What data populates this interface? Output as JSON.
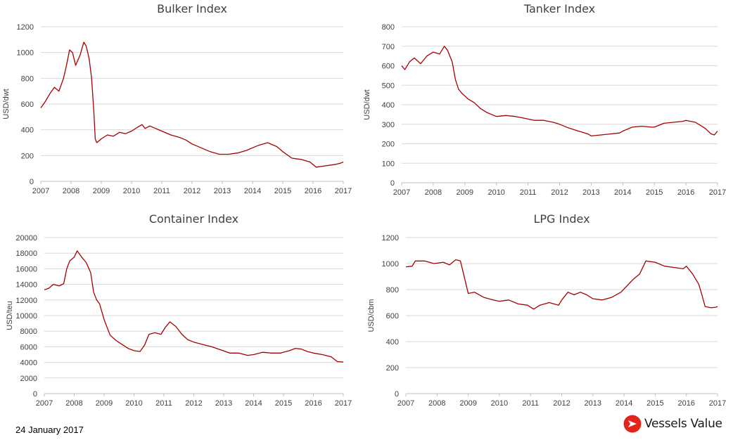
{
  "chart_data": [
    {
      "type": "line",
      "title": "Bulker Index",
      "xlabel": "",
      "ylabel": "USD/dwt",
      "xlim": [
        2007,
        2017
      ],
      "ylim": [
        0,
        1200
      ],
      "yticks": [
        0,
        200,
        400,
        600,
        800,
        1000,
        1200
      ],
      "xticks": [
        2007,
        2008,
        2009,
        2010,
        2011,
        2012,
        2013,
        2014,
        2015,
        2016,
        2017
      ],
      "color": "#a50000",
      "x": [
        2007.0,
        2007.15,
        2007.3,
        2007.45,
        2007.6,
        2007.75,
        2007.85,
        2007.95,
        2008.05,
        2008.15,
        2008.3,
        2008.42,
        2008.5,
        2008.6,
        2008.68,
        2008.75,
        2008.8,
        2008.85,
        2008.9,
        2009.0,
        2009.2,
        2009.4,
        2009.6,
        2009.8,
        2010.0,
        2010.2,
        2010.35,
        2010.45,
        2010.6,
        2010.8,
        2011.0,
        2011.3,
        2011.6,
        2011.8,
        2012.0,
        2012.3,
        2012.6,
        2012.9,
        2013.2,
        2013.5,
        2013.8,
        2014.0,
        2014.2,
        2014.5,
        2014.8,
        2015.0,
        2015.3,
        2015.6,
        2015.9,
        2016.1,
        2016.4,
        2016.7,
        2016.9,
        2017.0
      ],
      "y": [
        570,
        620,
        680,
        730,
        700,
        800,
        900,
        1020,
        1000,
        900,
        980,
        1080,
        1050,
        950,
        800,
        550,
        330,
        300,
        310,
        330,
        360,
        350,
        380,
        370,
        390,
        420,
        440,
        410,
        430,
        410,
        390,
        360,
        340,
        320,
        290,
        260,
        230,
        210,
        210,
        220,
        240,
        260,
        280,
        300,
        270,
        230,
        180,
        170,
        150,
        110,
        120,
        130,
        140,
        150
      ]
    },
    {
      "type": "line",
      "title": "Tanker Index",
      "xlabel": "",
      "ylabel": "USD/dwt",
      "xlim": [
        2007,
        2017
      ],
      "ylim": [
        0,
        800
      ],
      "yticks": [
        0,
        100,
        200,
        300,
        400,
        500,
        600,
        700,
        800
      ],
      "xticks": [
        2007,
        2008,
        2009,
        2010,
        2011,
        2012,
        2013,
        2014,
        2015,
        2016,
        2017
      ],
      "color": "#a50000",
      "x": [
        2007.0,
        2007.1,
        2007.25,
        2007.4,
        2007.6,
        2007.8,
        2008.0,
        2008.2,
        2008.35,
        2008.45,
        2008.6,
        2008.7,
        2008.8,
        2008.9,
        2009.1,
        2009.3,
        2009.5,
        2009.7,
        2010.0,
        2010.3,
        2010.6,
        2010.9,
        2011.2,
        2011.5,
        2011.8,
        2012.0,
        2012.3,
        2012.6,
        2012.9,
        2013.0,
        2013.3,
        2013.6,
        2013.9,
        2014.0,
        2014.3,
        2014.6,
        2014.9,
        2015.0,
        2015.3,
        2015.6,
        2015.9,
        2016.0,
        2016.3,
        2016.6,
        2016.8,
        2016.9,
        2017.0
      ],
      "y": [
        600,
        580,
        620,
        640,
        610,
        650,
        670,
        660,
        700,
        680,
        620,
        530,
        480,
        460,
        430,
        410,
        380,
        360,
        340,
        345,
        340,
        330,
        320,
        320,
        310,
        300,
        280,
        265,
        250,
        240,
        245,
        250,
        255,
        265,
        285,
        290,
        285,
        285,
        305,
        310,
        315,
        320,
        310,
        280,
        250,
        245,
        265
      ]
    },
    {
      "type": "line",
      "title": "Container Index",
      "xlabel": "",
      "ylabel": "USD/teu",
      "xlim": [
        2007,
        2017
      ],
      "ylim": [
        0,
        20000
      ],
      "yticks": [
        0,
        2000,
        4000,
        6000,
        8000,
        10000,
        12000,
        14000,
        16000,
        18000,
        20000
      ],
      "xticks": [
        2007,
        2008,
        2009,
        2010,
        2011,
        2012,
        2013,
        2014,
        2015,
        2016,
        2017
      ],
      "color": "#a50000",
      "x": [
        2007.0,
        2007.15,
        2007.3,
        2007.5,
        2007.65,
        2007.75,
        2007.85,
        2008.0,
        2008.1,
        2008.25,
        2008.4,
        2008.55,
        2008.65,
        2008.75,
        2008.85,
        2009.0,
        2009.2,
        2009.4,
        2009.6,
        2009.8,
        2010.0,
        2010.2,
        2010.35,
        2010.5,
        2010.7,
        2010.9,
        2011.05,
        2011.2,
        2011.4,
        2011.6,
        2011.8,
        2012.0,
        2012.3,
        2012.6,
        2012.9,
        2013.2,
        2013.5,
        2013.8,
        2014.0,
        2014.3,
        2014.6,
        2014.9,
        2015.2,
        2015.4,
        2015.6,
        2015.8,
        2016.0,
        2016.3,
        2016.6,
        2016.8,
        2017.0
      ],
      "y": [
        13300,
        13500,
        14000,
        13800,
        14100,
        16000,
        17000,
        17500,
        18300,
        17500,
        16800,
        15500,
        13000,
        12000,
        11500,
        9500,
        7500,
        6800,
        6300,
        5800,
        5500,
        5400,
        6200,
        7600,
        7800,
        7600,
        8500,
        9200,
        8600,
        7600,
        6900,
        6600,
        6300,
        6000,
        5600,
        5200,
        5200,
        4900,
        5000,
        5300,
        5200,
        5200,
        5500,
        5800,
        5700,
        5400,
        5200,
        5000,
        4700,
        4100,
        4050
      ]
    },
    {
      "type": "line",
      "title": "LPG Index",
      "xlabel": "",
      "ylabel": "USD/cbm",
      "xlim": [
        2007,
        2017
      ],
      "ylim": [
        0,
        1200
      ],
      "yticks": [
        0,
        200,
        400,
        600,
        800,
        1000,
        1200
      ],
      "xticks": [
        2007,
        2008,
        2009,
        2010,
        2011,
        2012,
        2013,
        2014,
        2015,
        2016,
        2017
      ],
      "color": "#a50000",
      "x": [
        2007.0,
        2007.2,
        2007.3,
        2007.6,
        2007.9,
        2008.2,
        2008.4,
        2008.6,
        2008.75,
        2008.85,
        2009.0,
        2009.2,
        2009.5,
        2009.8,
        2010.0,
        2010.3,
        2010.6,
        2010.9,
        2011.1,
        2011.3,
        2011.6,
        2011.9,
        2012.0,
        2012.2,
        2012.4,
        2012.6,
        2012.8,
        2013.0,
        2013.3,
        2013.6,
        2013.9,
        2014.1,
        2014.3,
        2014.5,
        2014.6,
        2014.7,
        2015.0,
        2015.3,
        2015.6,
        2015.9,
        2016.0,
        2016.2,
        2016.4,
        2016.5,
        2016.6,
        2016.8,
        2016.95,
        2017.0
      ],
      "y": [
        975,
        980,
        1020,
        1020,
        1000,
        1010,
        990,
        1030,
        1020,
        920,
        770,
        780,
        740,
        720,
        710,
        720,
        690,
        680,
        650,
        680,
        700,
        680,
        720,
        780,
        760,
        780,
        760,
        730,
        720,
        740,
        780,
        830,
        880,
        920,
        970,
        1020,
        1010,
        980,
        970,
        960,
        980,
        920,
        840,
        760,
        670,
        660,
        665,
        670
      ]
    }
  ],
  "footer": {
    "date": "24 January 2017",
    "brand": "Vessels Value"
  },
  "icons": {
    "logo": "vesselsvalue-logo-icon"
  },
  "colors": {
    "series": "#a50000",
    "logo_red": "#e3241b"
  }
}
